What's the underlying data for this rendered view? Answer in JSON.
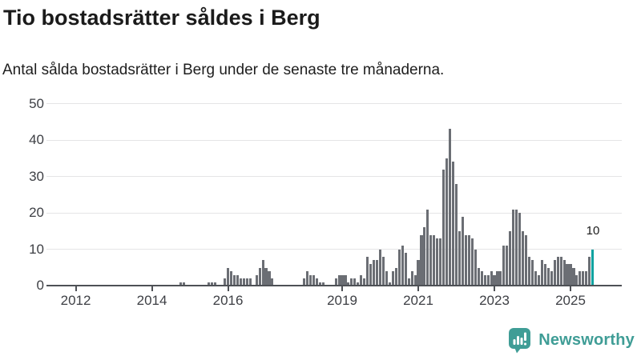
{
  "header": {
    "title": "Tio bostadsrätter såldes i Berg",
    "subtitle": "Antal sålda bostadsrätter i Berg under de senaste tre månaderna."
  },
  "chart_data": {
    "type": "bar",
    "title": "Tio bostadsrätter såldes i Berg",
    "subtitle": "Antal sålda bostadsrätter i Berg under de senaste tre månaderna.",
    "x_frequency": "monthly",
    "x_start_month": "2011-06",
    "x_end_month": "2025-08",
    "values": [
      0,
      0,
      0,
      0,
      0,
      0,
      0,
      0,
      0,
      0,
      0,
      0,
      0,
      0,
      0,
      0,
      0,
      0,
      0,
      0,
      0,
      0,
      0,
      0,
      0,
      0,
      0,
      0,
      0,
      0,
      0,
      0,
      0,
      0,
      0,
      0,
      0,
      0,
      0,
      0,
      1,
      1,
      0,
      0,
      0,
      0,
      0,
      0,
      0,
      1,
      1,
      1,
      0,
      0,
      2,
      5,
      4,
      3,
      3,
      2,
      2,
      2,
      2,
      0,
      3,
      5,
      7,
      5,
      4,
      2,
      0,
      0,
      0,
      0,
      0,
      0,
      0,
      0,
      0,
      2,
      4,
      3,
      3,
      2,
      1,
      1,
      0,
      0,
      0,
      2,
      3,
      3,
      3,
      1,
      2,
      2,
      1,
      3,
      2,
      8,
      6,
      7,
      7,
      10,
      8,
      4,
      1,
      4,
      5,
      10,
      11,
      9,
      2,
      4,
      3,
      7,
      14,
      16,
      21,
      14,
      14,
      13,
      13,
      32,
      35,
      43,
      34,
      28,
      15,
      19,
      14,
      14,
      13,
      10,
      5,
      4,
      3,
      3,
      4,
      3,
      4,
      4,
      11,
      11,
      15,
      21,
      21,
      20,
      15,
      14,
      8,
      7,
      4,
      3,
      7,
      6,
      5,
      4,
      7,
      8,
      8,
      7,
      6,
      6,
      5,
      3,
      4,
      4,
      4,
      8,
      10
    ],
    "ylim": [
      0,
      50
    ],
    "yticks": [
      0,
      10,
      20,
      30,
      40,
      50
    ],
    "xtick_years": [
      "2012",
      "2014",
      "2016",
      "2019",
      "2021",
      "2023",
      "2025"
    ],
    "grid": true,
    "legend": "none",
    "bar_color": "#6b6e74",
    "highlight_last_bar": true,
    "highlight_color": "#0aa2a0",
    "last_value": 10,
    "last_value_label": "10"
  },
  "branding": {
    "name": "Newsworthy",
    "color": "#3f9d96",
    "icon": "bar-chart-speech-bubble"
  }
}
